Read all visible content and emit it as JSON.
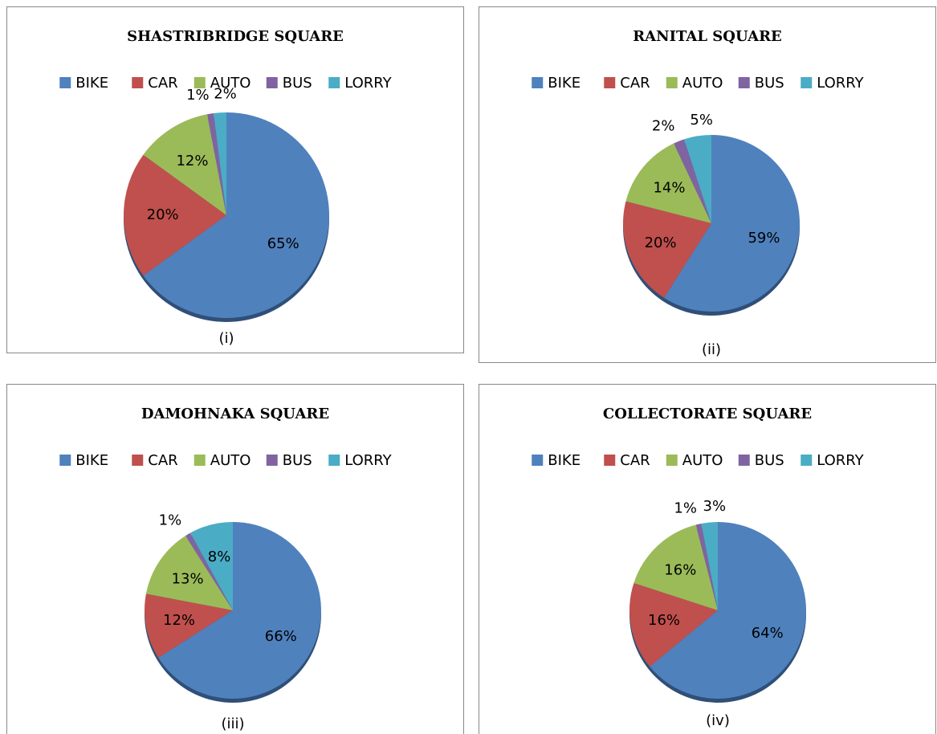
{
  "chart_data": [
    {
      "type": "pie",
      "title": "SHASTRIBRIDGE SQUARE",
      "caption": "(i)",
      "categories": [
        "BIKE",
        "CAR",
        "AUTO",
        "BUS",
        "LORRY"
      ],
      "values": [
        65,
        20,
        12,
        1,
        2
      ],
      "value_labels": [
        "65%",
        "20%",
        "12%",
        "1%",
        "2%"
      ],
      "colors": [
        "#4f81bd",
        "#c0504d",
        "#9bbb59",
        "#8064a2",
        "#4bacc6"
      ]
    },
    {
      "type": "pie",
      "title": "RANITAL SQUARE",
      "caption": "(ii)",
      "categories": [
        "BIKE",
        "CAR",
        "AUTO",
        "BUS",
        "LORRY"
      ],
      "values": [
        59,
        20,
        14,
        2,
        5
      ],
      "value_labels": [
        "59%",
        "20%",
        "14%",
        "2%",
        "5%"
      ],
      "colors": [
        "#4f81bd",
        "#c0504d",
        "#9bbb59",
        "#8064a2",
        "#4bacc6"
      ]
    },
    {
      "type": "pie",
      "title": "DAMOHNAKA SQUARE",
      "caption": "(iii)",
      "categories": [
        "BIKE",
        "CAR",
        "AUTO",
        "BUS",
        "LORRY"
      ],
      "values": [
        66,
        12,
        13,
        1,
        8
      ],
      "value_labels": [
        "66%",
        "12%",
        "13%",
        "1%",
        "8%"
      ],
      "colors": [
        "#4f81bd",
        "#c0504d",
        "#9bbb59",
        "#8064a2",
        "#4bacc6"
      ]
    },
    {
      "type": "pie",
      "title": "COLLECTORATE SQUARE",
      "caption": "(iv)",
      "categories": [
        "BIKE",
        "CAR",
        "AUTO",
        "BUS",
        "LORRY"
      ],
      "values": [
        64,
        16,
        16,
        1,
        3
      ],
      "value_labels": [
        "64%",
        "16%",
        "16%",
        "1%",
        "3%"
      ],
      "colors": [
        "#4f81bd",
        "#c0504d",
        "#9bbb59",
        "#8064a2",
        "#4bacc6"
      ]
    }
  ]
}
